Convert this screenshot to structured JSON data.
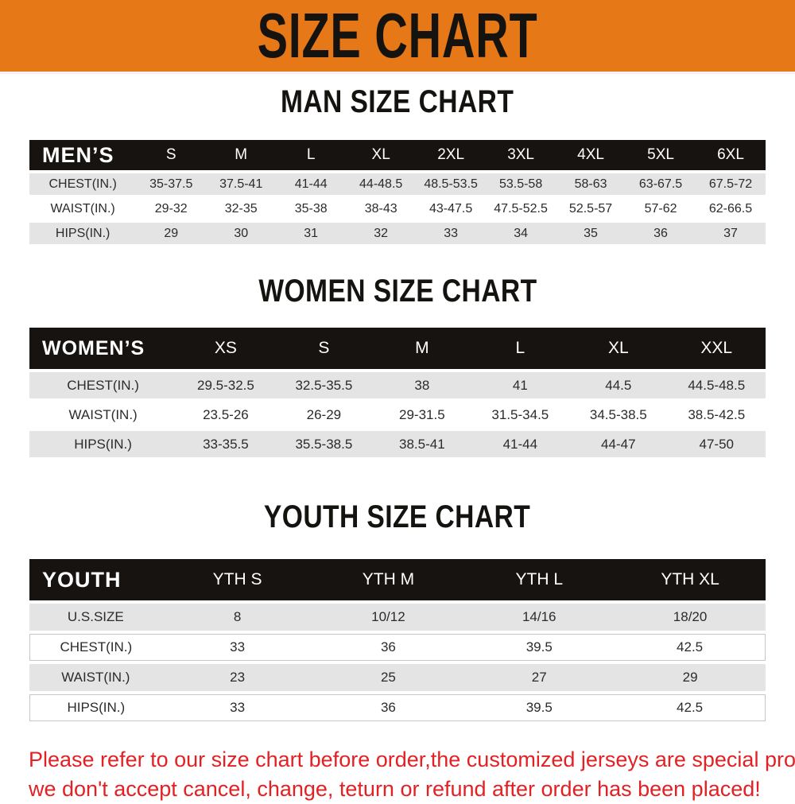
{
  "banner": {
    "title": "SIZE CHART"
  },
  "colors": {
    "banner_bg": "#e67817",
    "header_bar": "#171310",
    "row_stripe": "#e4e4e4",
    "notice_text": "#e32124"
  },
  "sections": [
    {
      "title": "MAN SIZE CHART",
      "header": {
        "label": "MEN’S",
        "sizes": [
          "S",
          "M",
          "L",
          "XL",
          "2XL",
          "3XL",
          "4XL",
          "5XL",
          "6XL"
        ]
      },
      "rows": [
        {
          "label": "CHEST(IN.)",
          "values": [
            "35-37.5",
            "37.5-41",
            "41-44",
            "44-48.5",
            "48.5-53.5",
            "53.5-58",
            "58-63",
            "63-67.5",
            "67.5-72"
          ]
        },
        {
          "label": "WAIST(IN.)",
          "values": [
            "29-32",
            "32-35",
            "35-38",
            "38-43",
            "43-47.5",
            "47.5-52.5",
            "52.5-57",
            "57-62",
            "62-66.5"
          ]
        },
        {
          "label": "HIPS(IN.)",
          "values": [
            "29",
            "30",
            "31",
            "32",
            "33",
            "34",
            "35",
            "36",
            "37"
          ]
        }
      ]
    },
    {
      "title": "WOMEN SIZE CHART",
      "header": {
        "label": "WOMEN’S",
        "sizes": [
          "XS",
          "S",
          "M",
          "L",
          "XL",
          "XXL"
        ]
      },
      "rows": [
        {
          "label": "CHEST(IN.)",
          "values": [
            "29.5-32.5",
            "32.5-35.5",
            "38",
            "41",
            "44.5",
            "44.5-48.5"
          ]
        },
        {
          "label": "WAIST(IN.)",
          "values": [
            "23.5-26",
            "26-29",
            "29-31.5",
            "31.5-34.5",
            "34.5-38.5",
            "38.5-42.5"
          ]
        },
        {
          "label": "HIPS(IN.)",
          "values": [
            "33-35.5",
            "35.5-38.5",
            "38.5-41",
            "41-44",
            "44-47",
            "47-50"
          ]
        }
      ]
    },
    {
      "title": "YOUTH SIZE CHART",
      "header": {
        "label": "YOUTH",
        "sizes": [
          "YTH S",
          "YTH M",
          "YTH L",
          "YTH XL"
        ]
      },
      "rows": [
        {
          "label": "U.S.SIZE",
          "values": [
            "8",
            "10/12",
            "14/16",
            "18/20"
          ]
        },
        {
          "label": "CHEST(IN.)",
          "values": [
            "33",
            "36",
            "39.5",
            "42.5"
          ]
        },
        {
          "label": "WAIST(IN.)",
          "values": [
            "23",
            "25",
            "27",
            "29"
          ]
        },
        {
          "label": "HIPS(IN.)",
          "values": [
            "33",
            "36",
            "39.5",
            "42.5"
          ]
        }
      ]
    }
  ],
  "notice": {
    "lines": [
      "Please refer to our size chart before order,the customized jerseys are special products,",
      "we don't accept cancel, change, teturn or refund after order has been placed!"
    ]
  }
}
